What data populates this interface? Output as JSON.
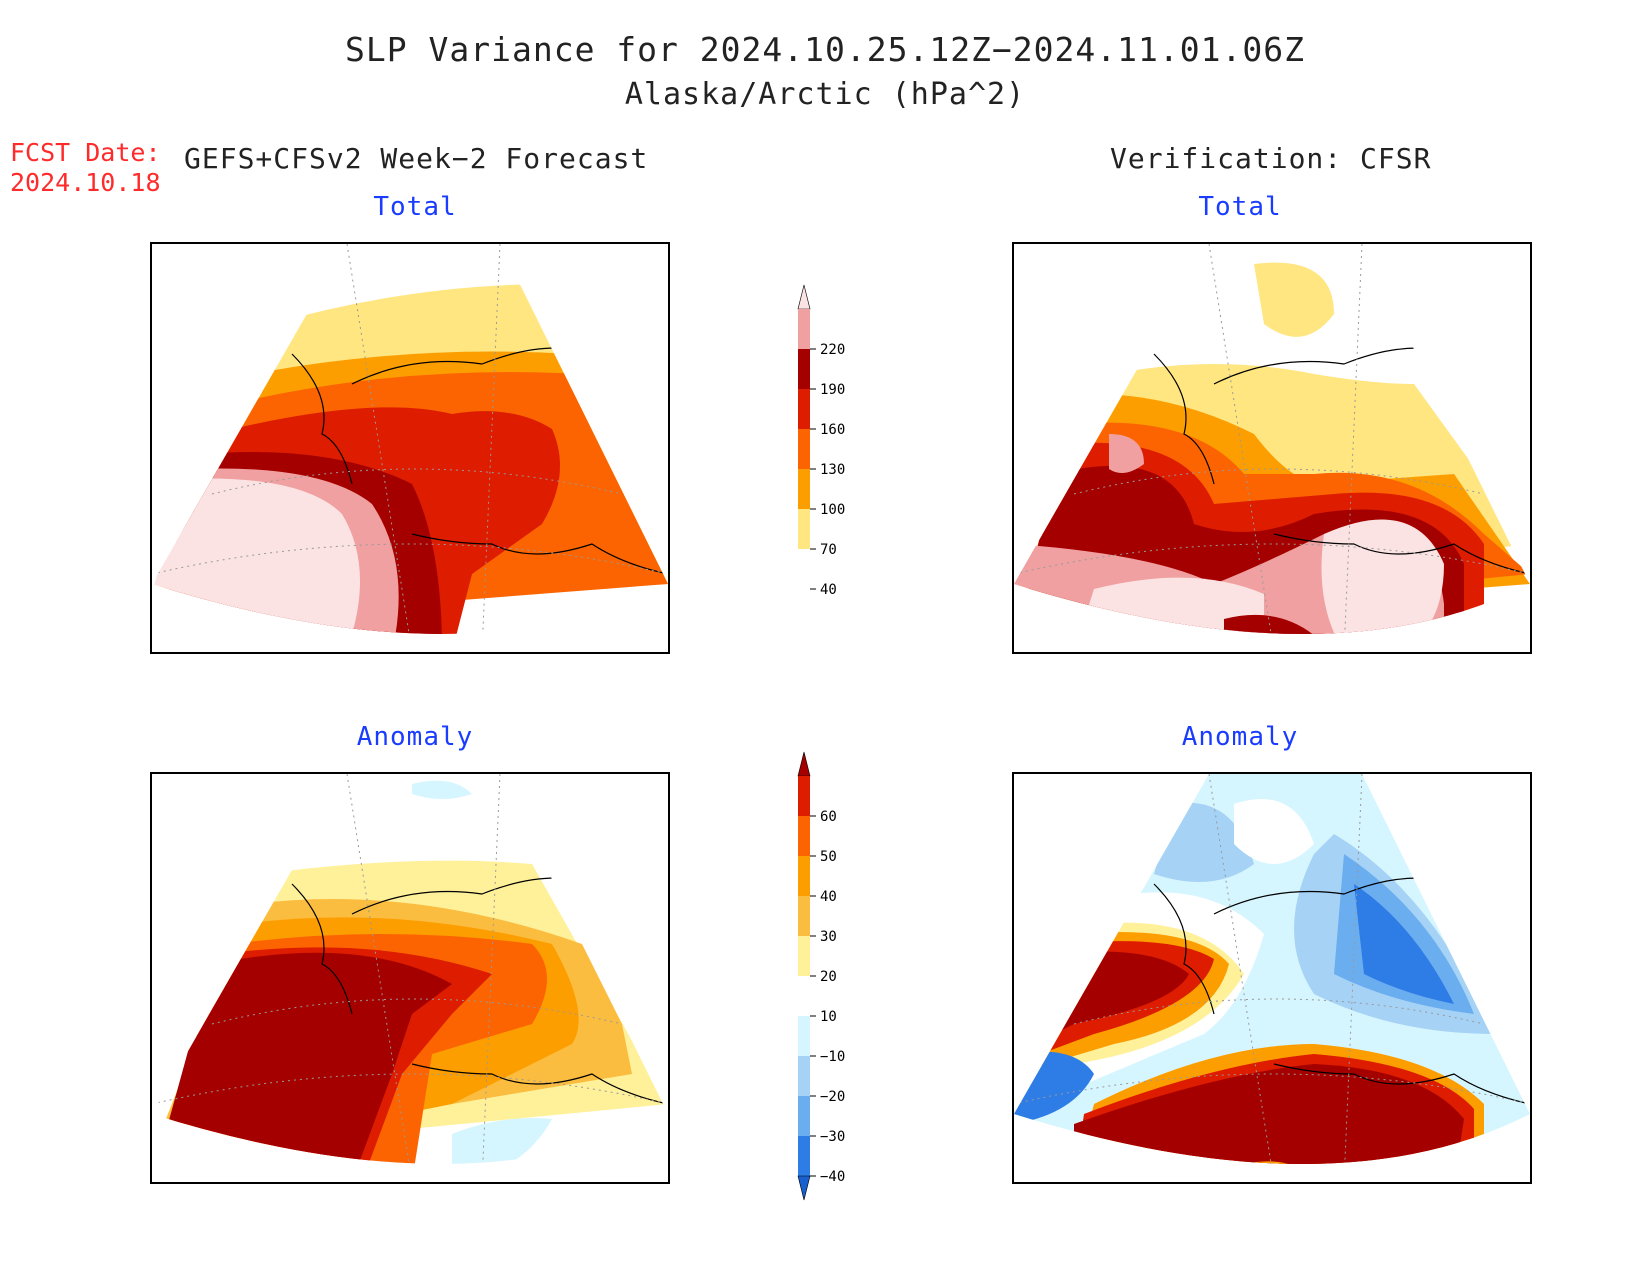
{
  "title": "SLP Variance for 2024.10.25.12Z−2024.11.01.06Z",
  "subtitle": "Alaska/Arctic (hPa^2)",
  "fcst_label": "FCST Date:",
  "fcst_date": "2024.10.18",
  "forecast_header": "GEFS+CFSv2 Week−2 Forecast",
  "verification_header": "Verification: CFSR",
  "panels": {
    "tl": {
      "title": "Total"
    },
    "tr": {
      "title": "Total"
    },
    "bl": {
      "title": "Anomaly"
    },
    "br": {
      "title": "Anomaly"
    }
  },
  "total_colorbar": {
    "labels": [
      "220",
      "190",
      "160",
      "130",
      "100",
      "70",
      "40"
    ],
    "colors": [
      "#fbe3e3",
      "#f0a0a0",
      "#a50000",
      "#dd1c00",
      "#fb6400",
      "#fd9e00",
      "#ffe680"
    ]
  },
  "anomaly_colorbar": {
    "labels": [
      "60",
      "50",
      "40",
      "30",
      "20",
      "10",
      "−10",
      "−20",
      "−30",
      "−40"
    ],
    "colors": [
      "#a50000",
      "#dd1c00",
      "#fb6400",
      "#fd9e00",
      "#fbbd40",
      "#fff09a",
      "#ffffff",
      "#d6f6ff",
      "#a6d2f6",
      "#6aaef0",
      "#2e7ce6",
      "#1760d0"
    ]
  },
  "palette": {
    "coast": "#000000",
    "grid": "#999999",
    "title_blue": "#1a3cff",
    "fcst_red": "#ff2a2a"
  }
}
